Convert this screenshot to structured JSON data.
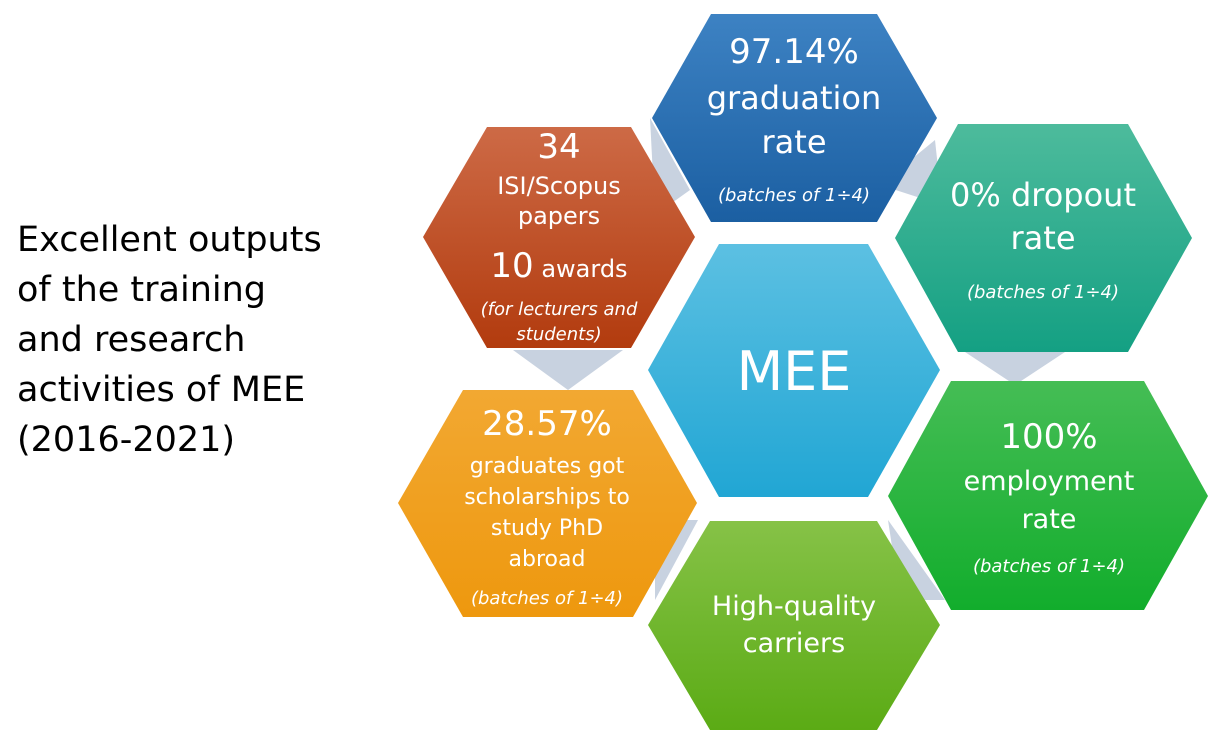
{
  "title_lines": [
    "Excellent outputs",
    "of the training",
    "and research",
    "activities of MEE",
    "(2016-2021)"
  ],
  "colors": {
    "center": "#3aaed8",
    "papers": "#c0461c",
    "graduation": "#2166ab",
    "dropout": "#26a98e",
    "employment": "#21b23c",
    "carriers": "#6cb52a",
    "scholarships": "#f0a01d",
    "connectors": "#c8d2e0"
  },
  "hexagons": {
    "center": {
      "label": "MEE"
    },
    "graduation": {
      "value": "97.14%",
      "lines": [
        "graduation",
        "rate"
      ],
      "note": "(batches of 1÷4)"
    },
    "papers": {
      "value": "34",
      "lines": [
        "ISI/Scopus",
        "papers"
      ],
      "awards_value": "10",
      "awards_label": "awards",
      "note_lines": [
        "(for lecturers and",
        "students)"
      ]
    },
    "dropout": {
      "lines": [
        "0% dropout",
        "rate"
      ],
      "note": "(batches of 1÷4)"
    },
    "scholarships": {
      "value": "28.57%",
      "lines": [
        "graduates got",
        "scholarships to",
        "study PhD",
        "abroad"
      ],
      "note": "(batches of 1÷4)"
    },
    "employment": {
      "value": "100%",
      "lines": [
        "employment",
        "rate"
      ],
      "note": "(batches of 1÷4)"
    },
    "carriers": {
      "lines": [
        "High-quality",
        "carriers"
      ]
    }
  }
}
